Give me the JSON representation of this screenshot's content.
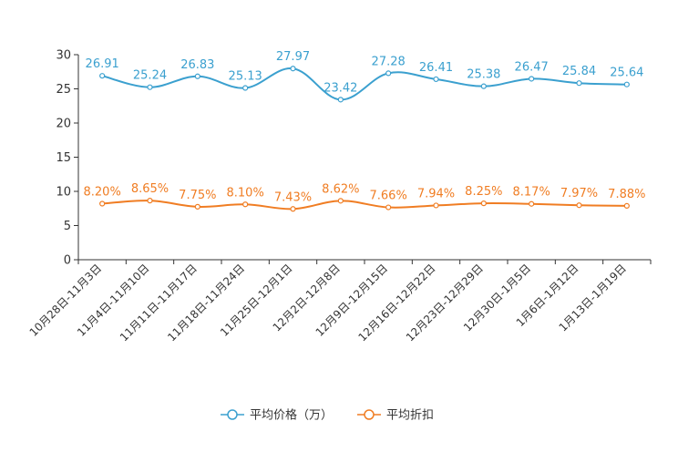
{
  "chart_data": {
    "type": "line",
    "categories": [
      "10月28日-11月3日",
      "11月4日-11月10日",
      "11月11日-11月17日",
      "11月18日-11月24日",
      "11月25日-12月1日",
      "12月2日-12月8日",
      "12月9日-12月15日",
      "12月16日-12月22日",
      "12月23日-12月29日",
      "12月30日-1月5日",
      "1月6日-1月12日",
      "1月13日-1月19日"
    ],
    "ylim": [
      0,
      30
    ],
    "yticks": [
      "0",
      "5",
      "10",
      "15",
      "20",
      "25",
      "30"
    ],
    "legend_position": "bottom",
    "series": [
      {
        "name": "平均价格（万）",
        "color": "#3ba0cf",
        "values": [
          26.91,
          25.24,
          26.83,
          25.13,
          27.97,
          23.42,
          27.28,
          26.41,
          25.38,
          26.47,
          25.84,
          25.64
        ],
        "labels": [
          "26.91",
          "25.24",
          "26.83",
          "25.13",
          "27.97",
          "23.42",
          "27.28",
          "26.41",
          "25.38",
          "26.47",
          "25.84",
          "25.64"
        ]
      },
      {
        "name": "平均折扣",
        "color": "#f07d23",
        "values": [
          8.2,
          8.65,
          7.75,
          8.1,
          7.43,
          8.62,
          7.66,
          7.94,
          8.25,
          8.17,
          7.97,
          7.88
        ],
        "labels": [
          "8.20%",
          "8.65%",
          "7.75%",
          "8.10%",
          "7.43%",
          "8.62%",
          "7.66%",
          "7.94%",
          "8.25%",
          "8.17%",
          "7.97%",
          "7.88%"
        ]
      }
    ]
  }
}
